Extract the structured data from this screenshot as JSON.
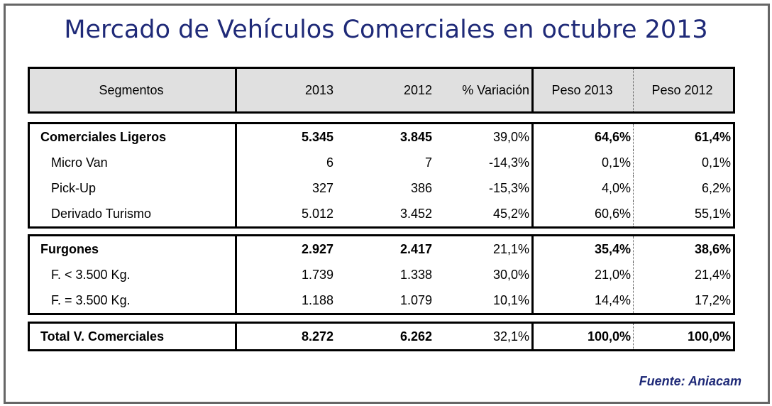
{
  "title": "Mercado de Vehículos Comerciales en octubre 2013",
  "columns": [
    "Segmentos",
    "2013",
    "2012",
    "% Variación",
    "Peso 2013",
    "Peso 2012"
  ],
  "groups": [
    {
      "rows": [
        {
          "segment": "Comerciales Ligeros",
          "y2013": "5.345",
          "y2012": "3.845",
          "variation": "39,0%",
          "peso2013": "64,6%",
          "peso2012": "61,4%",
          "bold": true
        },
        {
          "segment": "Micro Van",
          "y2013": "6",
          "y2012": "7",
          "variation": "-14,3%",
          "peso2013": "0,1%",
          "peso2012": "0,1%"
        },
        {
          "segment": "Pick-Up",
          "y2013": "327",
          "y2012": "386",
          "variation": "-15,3%",
          "peso2013": "4,0%",
          "peso2012": "6,2%"
        },
        {
          "segment": "Derivado Turismo",
          "y2013": "5.012",
          "y2012": "3.452",
          "variation": "45,2%",
          "peso2013": "60,6%",
          "peso2012": "55,1%"
        }
      ]
    },
    {
      "rows": [
        {
          "segment": "Furgones",
          "y2013": "2.927",
          "y2012": "2.417",
          "variation": "21,1%",
          "peso2013": "35,4%",
          "peso2012": "38,6%",
          "bold": true
        },
        {
          "segment": "F. < 3.500 Kg.",
          "y2013": "1.739",
          "y2012": "1.338",
          "variation": "30,0%",
          "peso2013": "21,0%",
          "peso2012": "21,4%"
        },
        {
          "segment": "F. = 3.500 Kg.",
          "y2013": "1.188",
          "y2012": "1.079",
          "variation": "10,1%",
          "peso2013": "14,4%",
          "peso2012": "17,2%"
        }
      ]
    },
    {
      "rows": [
        {
          "segment": "Total V. Comerciales",
          "y2013": "8.272",
          "y2012": "6.262",
          "variation": "32,1%",
          "peso2013": "100,0%",
          "peso2012": "100,0%",
          "bold": true
        }
      ]
    }
  ],
  "source": "Fuente: Aniacam",
  "colors": {
    "title": "#1f2a78",
    "header_bg": "#e0e0e0",
    "frame": "#666666"
  }
}
